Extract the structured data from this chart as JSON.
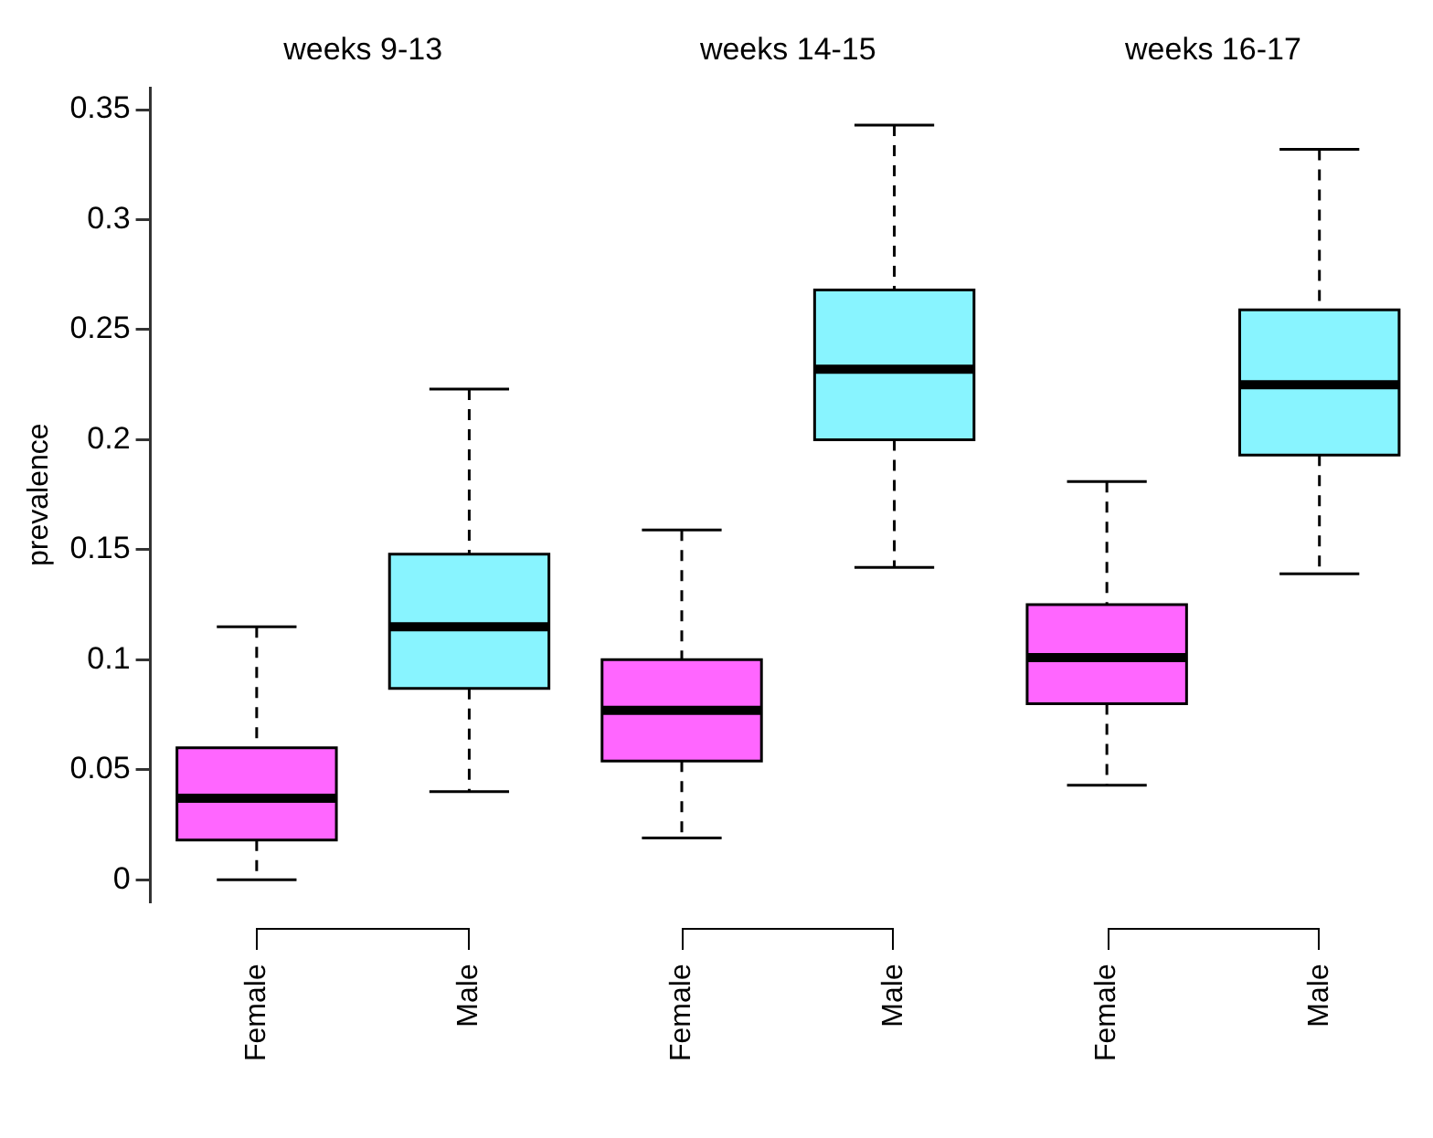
{
  "chart_data": {
    "type": "box",
    "ylabel": "prevalence",
    "categories": [
      "Female",
      "Male",
      "Female",
      "Male",
      "Female",
      "Male"
    ],
    "colors": [
      "#ff66ff",
      "#88f4ff",
      "#ff66ff",
      "#88f4ff",
      "#ff66ff",
      "#88f4ff"
    ],
    "boxes": [
      {
        "low": 0.0,
        "q1": 0.018,
        "median": 0.037,
        "q3": 0.06,
        "high": 0.115
      },
      {
        "low": 0.04,
        "q1": 0.087,
        "median": 0.115,
        "q3": 0.148,
        "high": 0.223
      },
      {
        "low": 0.019,
        "q1": 0.054,
        "median": 0.077,
        "q3": 0.1,
        "high": 0.159
      },
      {
        "low": 0.142,
        "q1": 0.2,
        "median": 0.232,
        "q3": 0.268,
        "high": 0.343
      },
      {
        "low": 0.043,
        "q1": 0.08,
        "median": 0.101,
        "q3": 0.125,
        "high": 0.181
      },
      {
        "low": 0.139,
        "q1": 0.193,
        "median": 0.225,
        "q3": 0.259,
        "high": 0.332
      }
    ],
    "annotations": [
      "weeks 9-13",
      "weeks 14-15",
      "weeks 16-17"
    ],
    "ylim": [
      -0.01,
      0.36
    ],
    "yticks": [
      0,
      0.05,
      0.1,
      0.15,
      0.2,
      0.25,
      0.3,
      0.35
    ],
    "grid": false,
    "legend": false
  }
}
